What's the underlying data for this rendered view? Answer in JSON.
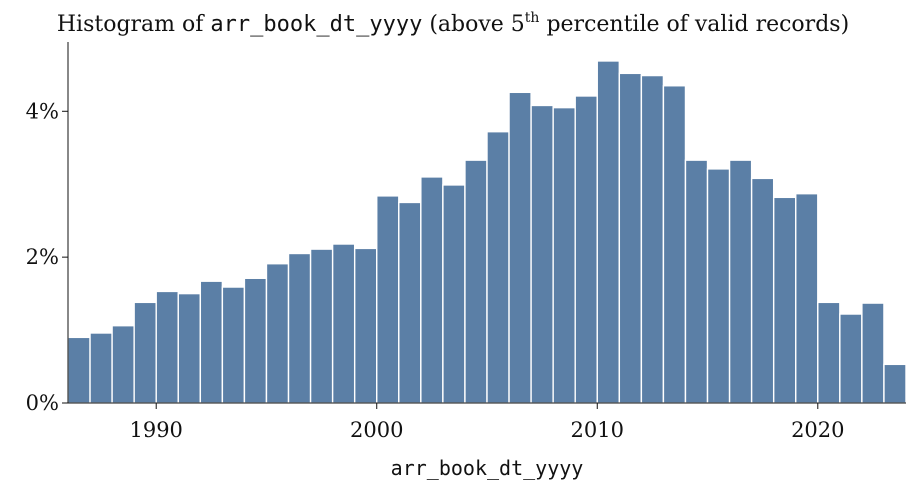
{
  "chart_data": {
    "type": "bar",
    "title": {
      "prefix": "Histogram of ",
      "variable": "arr_book_dt_yyyy",
      "middle": " (above 5",
      "superscript": "th",
      "suffix": " percentile of valid records)"
    },
    "xlabel": "arr_book_dt_yyyy",
    "ylabel": "",
    "x": [
      1986,
      1987,
      1988,
      1989,
      1990,
      1991,
      1992,
      1993,
      1994,
      1995,
      1996,
      1997,
      1998,
      1999,
      2000,
      2001,
      2002,
      2003,
      2004,
      2005,
      2006,
      2007,
      2008,
      2009,
      2010,
      2011,
      2012,
      2013,
      2014,
      2015,
      2016,
      2017,
      2018,
      2019,
      2020,
      2021,
      2022,
      2023
    ],
    "values": [
      0.9,
      0.96,
      1.06,
      1.38,
      1.53,
      1.5,
      1.67,
      1.59,
      1.71,
      1.91,
      2.05,
      2.11,
      2.18,
      2.12,
      2.84,
      2.75,
      3.1,
      2.99,
      3.33,
      3.72,
      4.26,
      4.08,
      4.05,
      4.21,
      4.69,
      4.52,
      4.49,
      4.35,
      3.33,
      3.21,
      3.33,
      3.08,
      2.82,
      2.87,
      1.38,
      1.22,
      1.37,
      0.53
    ],
    "bin_width": 1,
    "xlim": [
      1986,
      2024
    ],
    "ylim": [
      0,
      4.95
    ],
    "xticks": [
      1990,
      2000,
      2010,
      2020
    ],
    "xtick_labels": [
      "1990",
      "2000",
      "2010",
      "2020"
    ],
    "yticks": [
      0,
      2,
      4
    ],
    "ytick_labels": [
      "0%",
      "2%",
      "4%"
    ],
    "grid": false,
    "legend": "none",
    "bar_color": "#5b7fa6",
    "bar_edge_color": "#ffffff"
  }
}
